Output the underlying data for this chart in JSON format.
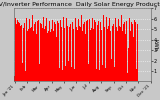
{
  "title": "Solar PV/Inverter Performance  Daily Solar Energy Production Value",
  "ylabel": "kWh",
  "bar_color": "#ff0000",
  "background_color": "#c8c8c8",
  "plot_bg_color": "#c8c8c8",
  "grid_color": "#ffffff",
  "values": [
    0.5,
    4.2,
    6.1,
    5.8,
    5.5,
    4.8,
    1.2,
    5.9,
    6.3,
    5.7,
    5.2,
    4.9,
    5.6,
    1.5,
    5.3,
    5.8,
    6.0,
    5.4,
    4.7,
    1.8,
    4.5,
    5.1,
    5.9,
    6.2,
    5.6,
    4.3,
    1.0,
    4.0,
    5.7,
    6.1,
    5.3,
    4.8,
    4.2,
    1.4,
    5.0,
    5.5,
    6.0,
    5.8,
    5.1,
    4.6,
    1.6,
    5.2,
    5.7,
    6.3,
    5.9,
    5.4,
    4.8,
    1.3,
    5.5,
    6.0,
    6.2,
    5.7,
    5.2,
    4.5,
    1.1,
    5.8,
    6.1,
    6.4,
    5.9,
    5.3,
    1.7,
    2.3,
    3.8,
    5.6,
    6.0,
    5.5,
    4.9,
    1.5,
    5.1,
    5.8,
    6.2,
    5.6,
    5.0,
    4.3,
    1.2,
    5.3,
    5.9,
    6.1,
    5.7,
    5.2,
    4.6,
    1.4,
    4.8,
    5.4,
    6.0,
    5.8,
    5.3,
    4.7,
    1.0,
    5.0,
    5.6,
    6.2,
    5.9,
    5.4,
    4.8,
    1.8,
    5.2,
    5.7,
    6.0,
    5.5,
    4.9,
    1.6,
    4.2,
    5.0,
    5.8,
    6.1,
    5.6,
    5.1,
    4.5,
    1.3,
    5.4,
    5.9,
    6.3,
    5.8,
    5.2,
    4.7,
    1.1,
    5.6,
    6.0,
    6.2,
    5.7,
    5.1,
    4.4,
    1.5,
    5.3,
    5.8,
    6.1,
    5.9,
    5.3,
    4.8,
    1.7,
    2.0,
    3.5,
    5.2,
    5.8,
    6.0,
    5.5,
    4.9,
    1.4,
    5.1,
    5.7,
    6.2,
    5.6,
    5.0,
    4.4,
    1.2,
    5.4,
    5.9,
    6.1,
    5.7,
    5.2,
    4.6,
    1.6,
    4.9,
    5.5,
    6.0,
    5.8,
    5.3,
    4.7,
    1.0,
    5.2,
    5.7,
    6.3,
    5.9,
    5.4,
    4.8,
    1.8,
    5.5,
    6.0,
    6.2,
    5.7,
    5.1,
    4.5,
    1.3,
    5.8,
    6.1,
    6.4,
    5.9,
    5.3,
    1.7,
    5.0,
    5.6,
    6.0,
    5.5,
    4.9,
    1.5,
    4.3,
    5.1,
    5.8,
    6.1,
    5.6,
    5.0,
    1.4,
    5.3,
    5.9,
    6.2,
    5.7,
    5.2,
    4.6,
    1.2,
    4.8,
    5.4,
    5.9,
    5.8,
    5.3,
    4.7,
    1.1,
    5.1,
    5.7,
    6.0,
    5.5,
    4.9,
    4.3,
    1.6,
    5.4,
    5.9,
    6.3,
    5.8,
    5.2,
    4.5,
    1.3,
    5.7,
    6.1,
    6.2,
    5.6,
    5.0,
    4.4,
    1.7,
    5.3,
    5.8,
    6.1,
    5.9,
    5.4,
    4.8,
    1.5,
    2.1,
    3.7,
    5.3,
    5.8,
    6.0,
    5.5,
    4.9,
    1.4,
    5.0,
    5.6,
    6.1,
    5.7,
    5.2,
    4.6,
    1.2,
    4.8,
    5.4,
    6.0,
    5.8,
    5.3,
    4.7,
    1.0,
    5.2,
    5.7,
    6.3,
    5.9,
    5.4,
    4.8,
    1.8,
    5.5,
    6.0,
    6.2,
    5.7,
    5.1,
    4.5,
    1.3,
    5.8,
    6.1,
    6.4,
    0.8,
    1.2,
    3.2,
    5.4,
    5.9,
    6.1,
    5.6,
    4.8,
    1.6,
    5.0,
    5.7,
    6.0,
    5.5,
    4.9,
    4.2,
    1.4,
    5.3,
    5.9,
    6.2,
    5.7,
    5.2,
    4.6,
    1.2,
    4.9,
    5.5,
    6.0
  ],
  "month_labels": [
    "Jan '21",
    "Feb",
    "Mar",
    "Apr",
    "May",
    "Jun",
    "Jul",
    "Aug",
    "Sep",
    "Oct",
    "Nov",
    "Dec '21"
  ],
  "month_tick_positions": [
    0,
    30,
    60,
    90,
    120,
    150,
    180,
    210,
    240,
    270,
    300,
    330
  ],
  "ylim": [
    0,
    7
  ],
  "yticks": [
    1,
    2,
    3,
    4,
    5,
    6,
    7
  ],
  "title_fontsize": 4.5,
  "tick_fontsize": 3.5,
  "ylabel_fontsize": 4
}
